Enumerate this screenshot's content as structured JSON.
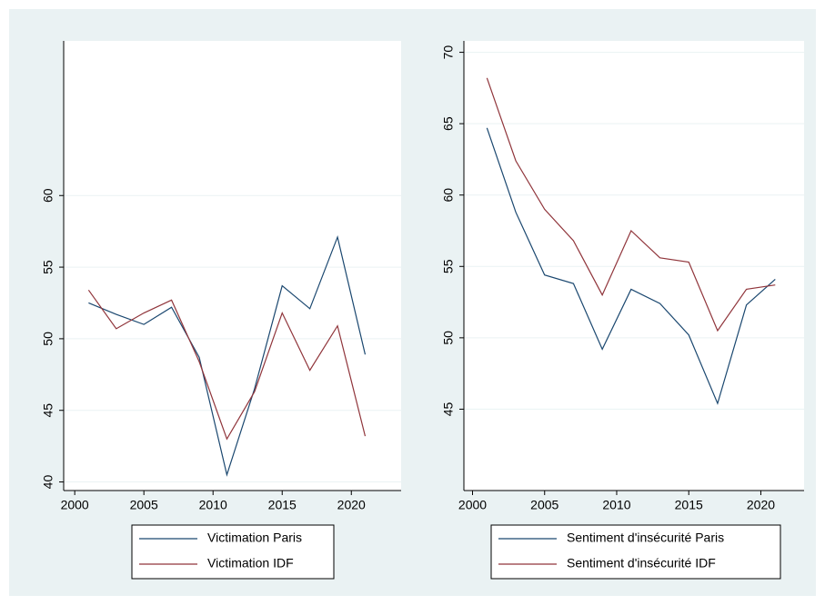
{
  "chart_data": [
    {
      "type": "line",
      "x": [
        2001,
        2003,
        2005,
        2007,
        2009,
        2011,
        2013,
        2015,
        2017,
        2019,
        2021
      ],
      "series": [
        {
          "name": "Victimation Paris",
          "color": "#1a476f",
          "values": [
            52.5,
            51.7,
            51.0,
            52.2,
            48.7,
            40.5,
            46.5,
            53.7,
            52.1,
            57.1,
            48.9
          ]
        },
        {
          "name": "Victimation IDF",
          "color": "#90353b",
          "values": [
            53.4,
            50.7,
            51.8,
            52.7,
            48.4,
            43.0,
            46.3,
            51.8,
            47.8,
            50.9,
            43.2
          ]
        }
      ],
      "xlim": [
        1999.2,
        2023.6
      ],
      "ylim": [
        39.4,
        70.8
      ],
      "xticks": [
        2000,
        2005,
        2010,
        2015,
        2020
      ],
      "yticks": [
        40,
        45,
        50,
        55,
        60
      ],
      "grid": true
    },
    {
      "type": "line",
      "x": [
        2001,
        2003,
        2005,
        2007,
        2009,
        2011,
        2013,
        2015,
        2017,
        2019,
        2021
      ],
      "series": [
        {
          "name": "Sentiment d'insécurité Paris",
          "color": "#1a476f",
          "values": [
            64.7,
            58.8,
            54.4,
            53.8,
            49.2,
            53.4,
            52.4,
            50.2,
            45.4,
            52.3,
            54.1
          ]
        },
        {
          "name": "Sentiment d'insécurité IDF",
          "color": "#90353b",
          "values": [
            68.2,
            62.4,
            59.0,
            56.8,
            53.0,
            57.5,
            55.6,
            55.3,
            50.5,
            53.4,
            53.7
          ]
        }
      ],
      "xlim": [
        1999.4,
        2023.0
      ],
      "ylim": [
        39.3,
        70.8
      ],
      "xticks": [
        2000,
        2005,
        2010,
        2015,
        2020
      ],
      "yticks": [
        45,
        50,
        55,
        60,
        65,
        70
      ],
      "grid": true
    }
  ]
}
